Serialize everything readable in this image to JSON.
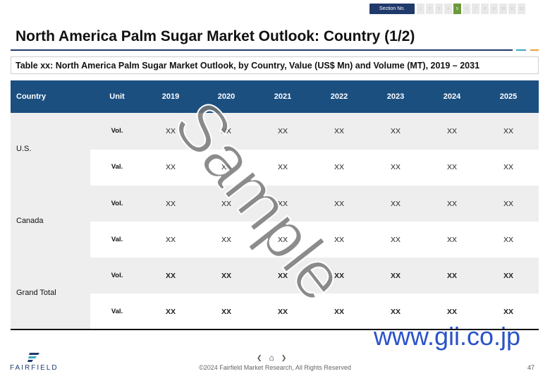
{
  "header": {
    "section_label": "Section No.",
    "pages": [
      "1",
      "2",
      "3",
      "4",
      "5",
      "6",
      "7",
      "8",
      "9",
      "10",
      "11",
      "12"
    ],
    "active_page": "5"
  },
  "title": "North America Palm Sugar Market Outlook: Country (1/2)",
  "caption": "Table xx: North America Palm Sugar Market Outlook, by Country, Value (US$ Mn) and Volume (MT), 2019 – 2031",
  "table": {
    "headers": [
      "Country",
      "Unit",
      "2019",
      "2020",
      "2021",
      "2022",
      "2023",
      "2024",
      "2025"
    ],
    "groups": [
      {
        "country": "U.S.",
        "rows": [
          {
            "unit": "Vol.",
            "values": [
              "XX",
              "XX",
              "XX",
              "XX",
              "XX",
              "XX",
              "XX"
            ]
          },
          {
            "unit": "Val.",
            "values": [
              "XX",
              "XX",
              "XX",
              "XX",
              "XX",
              "XX",
              "XX"
            ]
          }
        ]
      },
      {
        "country": "Canada",
        "rows": [
          {
            "unit": "Vol.",
            "values": [
              "XX",
              "XX",
              "XX",
              "XX",
              "XX",
              "XX",
              "XX"
            ]
          },
          {
            "unit": "Val.",
            "values": [
              "XX",
              "XX",
              "XX",
              "XX",
              "XX",
              "XX",
              "XX"
            ]
          }
        ]
      },
      {
        "country": "Grand Total",
        "rows": [
          {
            "unit": "Vol.",
            "values": [
              "XX",
              "XX",
              "XX",
              "XX",
              "XX",
              "XX",
              "XX"
            ]
          },
          {
            "unit": "Val.",
            "values": [
              "XX",
              "XX",
              "XX",
              "XX",
              "XX",
              "XX",
              "XX"
            ]
          }
        ]
      }
    ]
  },
  "footer": {
    "copyright": "©2024 Fairfield Market Research, All Rights Reserved",
    "page_number": "47",
    "logo": "FAIRFIELD",
    "nav_prev": "❮",
    "nav_home": "⌂",
    "nav_next": "❯"
  },
  "watermark": "Sample",
  "gii": "www.gii.co.jp",
  "colors": {
    "header_bg": "#1b4f80",
    "accent_green": "#6a9a3a",
    "gii_blue": "#2a52c9"
  }
}
